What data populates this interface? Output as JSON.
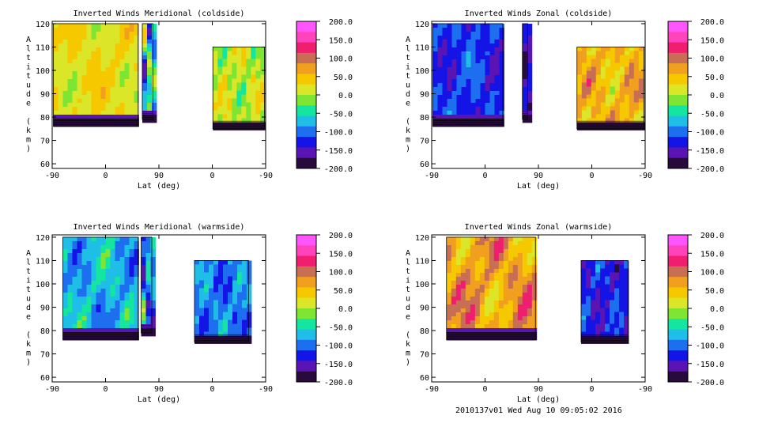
{
  "footer": "2010137v01 Wed Aug 10 09:05:02 2016",
  "colorbar": {
    "ticks": [
      "200.0",
      "150.0",
      "100.0",
      "50.0",
      "0.0",
      "-50.0",
      "-100.0",
      "-150.0",
      "-200.0"
    ],
    "colors": [
      "#ff55ff",
      "#ff44bb",
      "#f01e6e",
      "#c86e55",
      "#f0a01e",
      "#f5c800",
      "#dce628",
      "#7ee632",
      "#14e6a0",
      "#1ebee6",
      "#1e6ef0",
      "#1414e6",
      "#5a14b4",
      "#280a3c"
    ]
  },
  "chart_data": [
    {
      "type": "heatmap",
      "title": "Inverted Winds Meridional (coldside)",
      "xlabel": "Lat (deg)",
      "ylabel": "Altitude (km)",
      "xticks": [
        "-90",
        "0",
        "90",
        "0",
        "-90"
      ],
      "yticks": [
        "60",
        "70",
        "80",
        "90",
        "100",
        "110",
        "120"
      ],
      "xlim": [
        -90,
        90,
        -90
      ],
      "ylim": [
        58,
        121
      ],
      "colorbar_range": [
        -200,
        200
      ],
      "regions": [
        {
          "lat": [
            -88,
            55
          ],
          "alt": [
            76,
            120
          ],
          "base": 25,
          "wave": 25
        },
        {
          "lat": [
            62,
            80
          ],
          "alt": [
            79,
            120
          ],
          "base": -60,
          "wave": 80
        },
        {
          "lat": [
            -1,
            -88
          ],
          "alt": [
            75,
            110
          ],
          "base": 5,
          "wave": 35
        }
      ]
    },
    {
      "type": "heatmap",
      "title": "Inverted Winds Zonal (coldside)",
      "xlabel": "Lat (deg)",
      "ylabel": "Altitude (km)",
      "xticks": [
        "-90",
        "0",
        "90",
        "0",
        "-90"
      ],
      "yticks": [
        "60",
        "70",
        "80",
        "90",
        "100",
        "110",
        "120"
      ],
      "xlim": [
        -90,
        90,
        -90
      ],
      "ylim": [
        58,
        121
      ],
      "colorbar_range": [
        -200,
        200
      ],
      "regions": [
        {
          "lat": [
            -88,
            30
          ],
          "alt": [
            76,
            120
          ],
          "base": -120,
          "wave": 30
        },
        {
          "lat": [
            63,
            72
          ],
          "alt": [
            79,
            120
          ],
          "base": -150,
          "wave": 30
        },
        {
          "lat": [
            25,
            -88
          ],
          "alt": [
            75,
            110
          ],
          "base": 55,
          "wave": 40
        }
      ]
    },
    {
      "type": "heatmap",
      "title": "Inverted Winds Meridional (warmside)",
      "xlabel": "Lat (deg)",
      "ylabel": "Altitude (km)",
      "xticks": [
        "-90",
        "0",
        "90",
        "0",
        "-90"
      ],
      "yticks": [
        "60",
        "70",
        "80",
        "90",
        "100",
        "110",
        "120"
      ],
      "xlim": [
        -90,
        90,
        -90
      ],
      "ylim": [
        58,
        121
      ],
      "colorbar_range": [
        -200,
        200
      ],
      "regions": [
        {
          "lat": [
            -72,
            55
          ],
          "alt": [
            76,
            120
          ],
          "base": -75,
          "wave": 35
        },
        {
          "lat": [
            60,
            78
          ],
          "alt": [
            79,
            120
          ],
          "base": -90,
          "wave": 60
        },
        {
          "lat": [
            30,
            -61
          ],
          "alt": [
            75,
            110
          ],
          "base": -95,
          "wave": 30
        }
      ]
    },
    {
      "type": "heatmap",
      "title": "Inverted Winds Zonal (warmside)",
      "xlabel": "Lat (deg)",
      "ylabel": "Altitude (km)",
      "xticks": [
        "-90",
        "0",
        "90",
        "0",
        "-90"
      ],
      "yticks": [
        "60",
        "70",
        "80",
        "90",
        "100",
        "110",
        "120"
      ],
      "xlim": [
        -90,
        90,
        -90
      ],
      "ylim": [
        58,
        121
      ],
      "colorbar_range": [
        -200,
        200
      ],
      "regions": [
        {
          "lat": [
            -65,
            85
          ],
          "alt": [
            76,
            120
          ],
          "base": 70,
          "wave": 45
        },
        {
          "lat": [
            18,
            -61
          ],
          "alt": [
            75,
            110
          ],
          "base": -130,
          "wave": 30
        }
      ]
    }
  ]
}
